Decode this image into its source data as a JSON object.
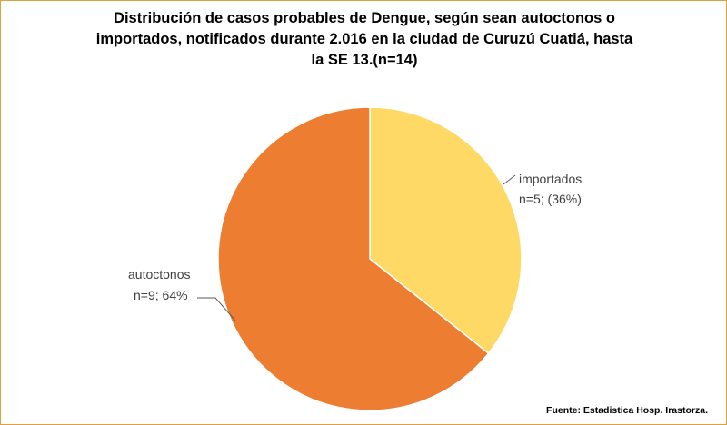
{
  "chart_data": {
    "type": "pie",
    "title_lines": [
      "Distribución de casos probables de Dengue, según sean autoctonos o",
      "importados, notificados durante 2.016 en la ciudad de Curuzú Cuatiá, hasta",
      "la SE 13.(n=14)"
    ],
    "slices": [
      {
        "category": "importados",
        "value": 5,
        "label_line1": "importados",
        "label_line2": "n=5; (36%)",
        "color": "#FFD966"
      },
      {
        "category": "autoctonos",
        "value": 9,
        "label_line1": "autoctonos",
        "label_line2": "n=9; 64%",
        "color": "#ED7D31"
      }
    ],
    "total": 14,
    "start_angle_deg": 0,
    "direction": "clockwise",
    "legend": "none"
  },
  "source": "Fuente: Estadistica Hosp. Irastorza."
}
